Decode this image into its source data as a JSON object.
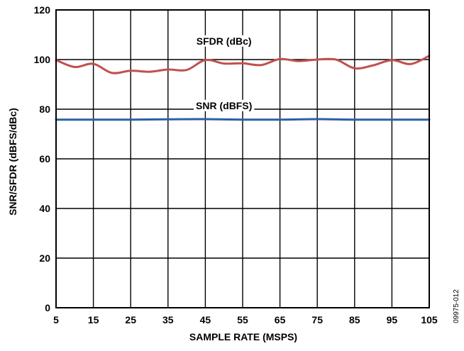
{
  "chart_data": {
    "type": "line",
    "xlabel": "SAMPLE RATE (MSPS)",
    "ylabel": "SNR/SFDR (dBFS/dBc)",
    "xlim": [
      5,
      105
    ],
    "ylim": [
      0,
      120
    ],
    "x_ticks": [
      5,
      15,
      25,
      35,
      45,
      55,
      65,
      75,
      85,
      95,
      105
    ],
    "y_ticks": [
      0,
      20,
      40,
      60,
      80,
      100,
      120
    ],
    "grid": true,
    "legend": "none",
    "figure_id": "09975-012",
    "series": [
      {
        "name": "SFDR (dBc)",
        "color": "#c0504d",
        "x": [
          5,
          10,
          15,
          20,
          25,
          30,
          35,
          40,
          45,
          50,
          55,
          60,
          65,
          70,
          75,
          80,
          85,
          90,
          95,
          100,
          105
        ],
        "y": [
          99.8,
          97.0,
          98.3,
          94.6,
          95.5,
          95.1,
          96.0,
          95.8,
          99.8,
          98.4,
          98.5,
          97.8,
          100.2,
          99.4,
          100.0,
          100.0,
          96.5,
          97.7,
          99.8,
          98.2,
          101.5
        ]
      },
      {
        "name": "SNR (dBFS)",
        "color": "#2e5fa3",
        "x": [
          5,
          15,
          25,
          35,
          45,
          55,
          65,
          75,
          85,
          95,
          105
        ],
        "y": [
          75.8,
          75.8,
          75.8,
          75.9,
          76.0,
          75.8,
          75.8,
          76.0,
          75.8,
          75.8,
          75.8
        ]
      }
    ]
  }
}
